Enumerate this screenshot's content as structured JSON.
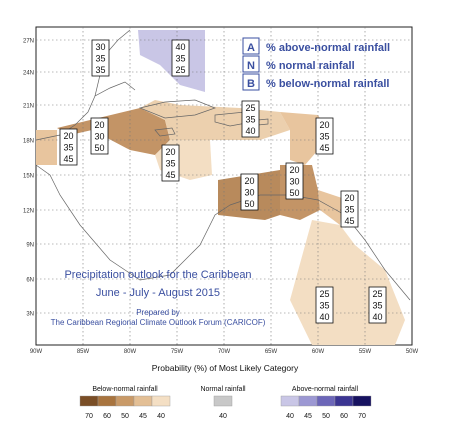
{
  "legend_key": [
    {
      "letter": "A",
      "label": "% above-normal rainfall"
    },
    {
      "letter": "N",
      "label": "% normal rainfall"
    },
    {
      "letter": "B",
      "label": "% below-normal rainfall"
    }
  ],
  "map_title": {
    "line1": "Precipitation outlook for the Caribbean",
    "line2": "June - July - August 2015",
    "prepared_by": "Prepared by",
    "organization": "The Caribbean Regional Climate Outlook Forum (CARICOF)"
  },
  "lat_labels": [
    "27N",
    "24N",
    "21N",
    "18N",
    "15N",
    "12N",
    "9N",
    "6N",
    "3N"
  ],
  "lon_labels": [
    "90W",
    "85W",
    "80W",
    "75W",
    "70W",
    "65W",
    "60W",
    "55W",
    "50W"
  ],
  "probability_boxes": [
    {
      "a": "40",
      "n": "35",
      "b": "25"
    },
    {
      "a": "30",
      "n": "35",
      "b": "35"
    },
    {
      "a": "20",
      "n": "35",
      "b": "45"
    },
    {
      "a": "20",
      "n": "30",
      "b": "50"
    },
    {
      "a": "25",
      "n": "35",
      "b": "40"
    },
    {
      "a": "20",
      "n": "35",
      "b": "45"
    },
    {
      "a": "20",
      "n": "35",
      "b": "45"
    },
    {
      "a": "20",
      "n": "30",
      "b": "50"
    },
    {
      "a": "20",
      "n": "30",
      "b": "50"
    },
    {
      "a": "20",
      "n": "35",
      "b": "45"
    },
    {
      "a": "25",
      "n": "35",
      "b": "40"
    },
    {
      "a": "25",
      "n": "35",
      "b": "40"
    }
  ],
  "scale": {
    "title": "Probability (%) of Most Likely Category",
    "below": {
      "label": "Below-normal rainfall",
      "values": [
        "70",
        "60",
        "50",
        "45",
        "40"
      ],
      "colors": [
        "#7a4e26",
        "#a8743f",
        "#c99a68",
        "#e3bf95",
        "#f4dfc4"
      ]
    },
    "normal": {
      "label": "Normal rainfall",
      "values": [
        "40"
      ],
      "colors": [
        "#c8c8c8"
      ]
    },
    "above": {
      "label": "Above-normal rainfall",
      "values": [
        "40",
        "45",
        "50",
        "60",
        "70"
      ],
      "colors": [
        "#c9c6e6",
        "#9c98d3",
        "#6c66b8",
        "#3b3592",
        "#171260"
      ]
    }
  }
}
